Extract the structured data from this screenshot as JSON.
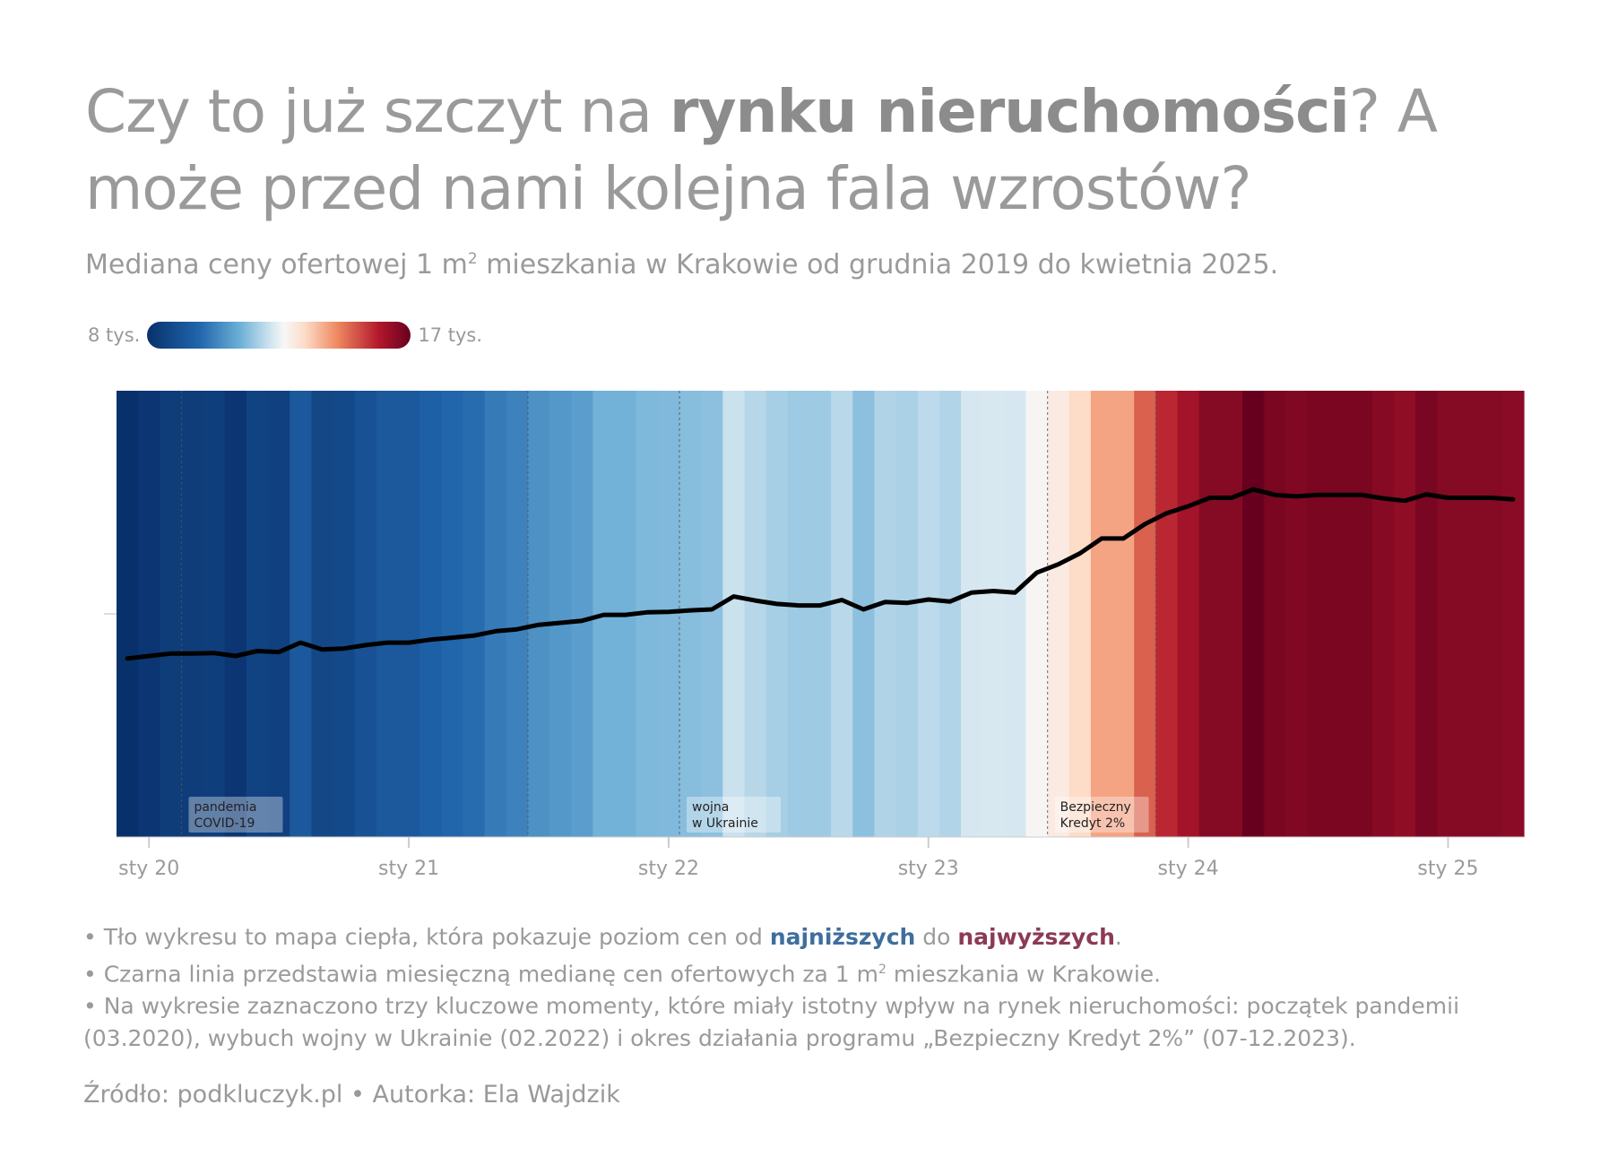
{
  "header": {
    "title_part1": "Czy to już szczyt na ",
    "title_bold": "rynku nieruchomości",
    "title_part2": "? A może przed nami kolejna fala wzrostów?",
    "subtitle_part1": "Mediana ceny ofertowej 1 m",
    "subtitle_sup": "2",
    "subtitle_part2": " mieszkania w Krakowie od grudnia 2019 do kwietnia 2025."
  },
  "legend": {
    "min_label": "8 tys.",
    "max_label": "17 tys."
  },
  "chart_data": {
    "type": "heatmap",
    "description_series": "line",
    "x_start": "2019-12",
    "x_end": "2025-04",
    "ylim": [
      8000,
      17000
    ],
    "color_scale": [
      "#08306b",
      "#2166ac",
      "#6baed6",
      "#d1e5f0",
      "#f7f7f7",
      "#fddbc7",
      "#ef8a62",
      "#b2182b",
      "#67001f"
    ],
    "x_ticks": [
      {
        "date": "2020-01",
        "label": "sty 20"
      },
      {
        "date": "2021-01",
        "label": "sty 21"
      },
      {
        "date": "2022-01",
        "label": "sty 22"
      },
      {
        "date": "2023-01",
        "label": "sty 23"
      },
      {
        "date": "2024-01",
        "label": "sty 24"
      },
      {
        "date": "2025-01",
        "label": "sty 25"
      }
    ],
    "months": [
      "2019-12",
      "2020-01",
      "2020-02",
      "2020-03",
      "2020-04",
      "2020-05",
      "2020-06",
      "2020-07",
      "2020-08",
      "2020-09",
      "2020-10",
      "2020-11",
      "2020-12",
      "2021-01",
      "2021-02",
      "2021-03",
      "2021-04",
      "2021-05",
      "2021-06",
      "2021-07",
      "2021-08",
      "2021-09",
      "2021-10",
      "2021-11",
      "2021-12",
      "2022-01",
      "2022-02",
      "2022-03",
      "2022-04",
      "2022-05",
      "2022-06",
      "2022-07",
      "2022-08",
      "2022-09",
      "2022-10",
      "2022-11",
      "2022-12",
      "2023-01",
      "2023-02",
      "2023-03",
      "2023-04",
      "2023-05",
      "2023-06",
      "2023-07",
      "2023-08",
      "2023-09",
      "2023-10",
      "2023-11",
      "2023-12",
      "2024-01",
      "2024-02",
      "2024-03",
      "2024-04",
      "2024-05",
      "2024-06",
      "2024-07",
      "2024-08",
      "2024-09",
      "2024-10",
      "2024-11",
      "2024-12",
      "2025-01",
      "2025-02",
      "2025-03",
      "2025-04"
    ],
    "values": [
      11600,
      11650,
      11700,
      11700,
      11710,
      11650,
      11750,
      11730,
      11920,
      11780,
      11800,
      11870,
      11920,
      11920,
      11980,
      12020,
      12060,
      12150,
      12190,
      12280,
      12320,
      12360,
      12480,
      12480,
      12530,
      12540,
      12570,
      12590,
      12850,
      12770,
      12700,
      12670,
      12670,
      12780,
      12590,
      12740,
      12720,
      12790,
      12750,
      12930,
      12960,
      12930,
      13330,
      13500,
      13720,
      14020,
      14020,
      14310,
      14530,
      14670,
      14840,
      14840,
      15010,
      14900,
      14870,
      14900,
      14900,
      14900,
      14830,
      14780,
      14910,
      14840,
      14840,
      14840,
      14810
    ],
    "annotations": [
      {
        "date": "2020-03",
        "label_lines": [
          "pandemia",
          "COVID-19"
        ]
      },
      {
        "date": "2022-02",
        "label_lines": [
          "wojna",
          "w Ukrainie"
        ]
      },
      {
        "date": "2023-07",
        "label_lines": [
          "Bezpieczny",
          "Kredyt 2%"
        ],
        "end": "2023-12"
      }
    ],
    "extra_dashed_lines": [
      "2021-07"
    ]
  },
  "notes": {
    "line1_part1": "• Tło wykresu to mapa ciepła, która pokazuje poziom cen od ",
    "line1_low": "najniższych",
    "line1_mid": " do ",
    "line1_high": "najwyższych",
    "line1_end": ".",
    "line2_part1": "• Czarna linia przedstawia miesięczną medianę cen ofertowych za 1 m",
    "line2_sup": "2",
    "line2_part2": " mieszkania w Krakowie.",
    "line3": "• Na wykresie zaznaczono trzy kluczowe momenty, które miały istotny wpływ na rynek nieruchomości: początek pandemii (03.2020), wybuch wojny w Ukrainie (02.2022) i okres działania programu „Bezpieczny Kredyt 2%” (07-12.2023)."
  },
  "footer": {
    "source": "Źródło: podkluczyk.pl • Autorka: Ela Wajdzik"
  }
}
